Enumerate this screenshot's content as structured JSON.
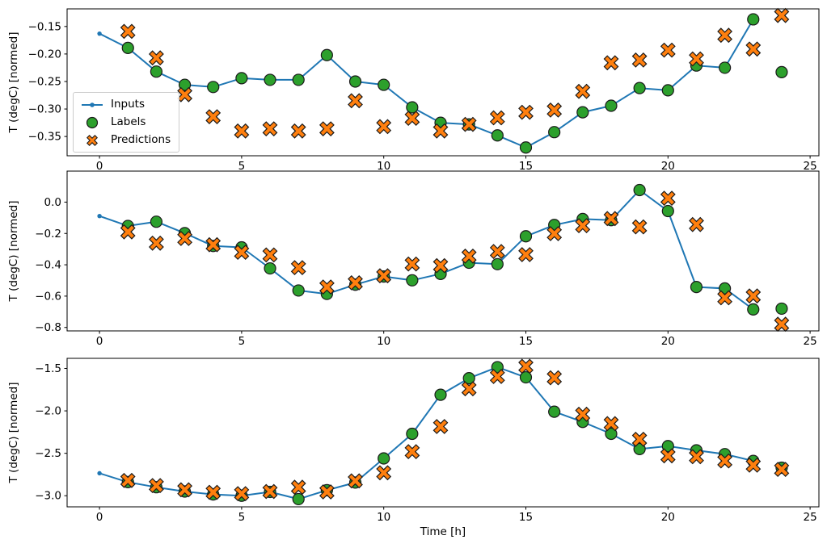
{
  "figure": {
    "background": "#ffffff"
  },
  "colors": {
    "inputs": "#1f77b4",
    "labels": "#2ca02c",
    "predictions": "#ff7f0e",
    "marker_edge": "#1a1a1a",
    "axis": "#000000"
  },
  "legend": {
    "entries": [
      "Inputs",
      "Labels",
      "Predictions"
    ],
    "position": "center-left of top subplot"
  },
  "chart_data": [
    {
      "type": "line",
      "title": "",
      "xlabel": "",
      "ylabel": "T (degC) [normed]",
      "xlim": [
        -1.14,
        25.31
      ],
      "ylim": [
        -0.385,
        -0.118
      ],
      "grid": false,
      "xticks": [
        0,
        5,
        10,
        15,
        20,
        25
      ],
      "xtick_labels": [
        "0",
        "5",
        "10",
        "15",
        "20",
        "25"
      ],
      "yticks": [
        -0.15,
        -0.2,
        -0.25,
        -0.3,
        -0.35
      ],
      "ytick_labels": [
        "−0.15",
        "−0.20",
        "−0.25",
        "−0.30",
        "−0.35"
      ],
      "series": [
        {
          "name": "Inputs",
          "style": "line+dot",
          "x": [
            0,
            1,
            2,
            3,
            4,
            5,
            6,
            7,
            8,
            9,
            10,
            11,
            12,
            13,
            14,
            15,
            16,
            17,
            18,
            19,
            20,
            21,
            22,
            23
          ],
          "y": [
            -0.163,
            -0.189,
            -0.232,
            -0.256,
            -0.26,
            -0.244,
            -0.247,
            -0.247,
            -0.202,
            -0.25,
            -0.256,
            -0.297,
            -0.325,
            -0.328,
            -0.348,
            -0.37,
            -0.342,
            -0.306,
            -0.294,
            -0.262,
            -0.266,
            -0.221,
            -0.225,
            -0.137
          ]
        },
        {
          "name": "Labels",
          "style": "circle",
          "x": [
            1,
            2,
            3,
            4,
            5,
            6,
            7,
            8,
            9,
            10,
            11,
            12,
            13,
            14,
            15,
            16,
            17,
            18,
            19,
            20,
            21,
            22,
            23,
            24
          ],
          "y": [
            -0.189,
            -0.232,
            -0.256,
            -0.26,
            -0.244,
            -0.247,
            -0.247,
            -0.202,
            -0.25,
            -0.256,
            -0.297,
            -0.325,
            -0.328,
            -0.348,
            -0.37,
            -0.342,
            -0.306,
            -0.294,
            -0.262,
            -0.266,
            -0.221,
            -0.225,
            -0.137,
            -0.233
          ]
        },
        {
          "name": "Predictions",
          "style": "x",
          "x": [
            1,
            2,
            3,
            4,
            5,
            6,
            7,
            8,
            9,
            10,
            11,
            12,
            13,
            14,
            15,
            16,
            17,
            18,
            19,
            20,
            21,
            22,
            23,
            24
          ],
          "y": [
            -0.159,
            -0.207,
            -0.274,
            -0.314,
            -0.34,
            -0.336,
            -0.34,
            -0.336,
            -0.285,
            -0.332,
            -0.317,
            -0.34,
            -0.328,
            -0.316,
            -0.306,
            -0.302,
            -0.268,
            -0.216,
            -0.211,
            -0.193,
            -0.209,
            -0.166,
            -0.191,
            -0.13
          ]
        }
      ]
    },
    {
      "type": "line",
      "title": "",
      "xlabel": "",
      "ylabel": "T (degC) [normed]",
      "xlim": [
        -1.14,
        25.31
      ],
      "ylim": [
        -0.822,
        0.198
      ],
      "grid": false,
      "xticks": [
        0,
        5,
        10,
        15,
        20,
        25
      ],
      "xtick_labels": [
        "0",
        "5",
        "10",
        "15",
        "20",
        "25"
      ],
      "yticks": [
        0.0,
        -0.2,
        -0.4,
        -0.6,
        -0.8
      ],
      "ytick_labels": [
        "0.0",
        "−0.2",
        "−0.4",
        "−0.6",
        "−0.8"
      ],
      "series": [
        {
          "name": "Inputs",
          "style": "line+dot",
          "x": [
            0,
            1,
            2,
            3,
            4,
            5,
            6,
            7,
            8,
            9,
            10,
            11,
            12,
            13,
            14,
            15,
            16,
            17,
            18,
            19,
            20,
            21,
            22,
            23
          ],
          "y": [
            -0.089,
            -0.152,
            -0.125,
            -0.198,
            -0.28,
            -0.289,
            -0.423,
            -0.564,
            -0.586,
            -0.527,
            -0.475,
            -0.499,
            -0.458,
            -0.387,
            -0.396,
            -0.218,
            -0.146,
            -0.108,
            -0.115,
            0.077,
            -0.057,
            -0.542,
            -0.551,
            -0.685
          ]
        },
        {
          "name": "Labels",
          "style": "circle",
          "x": [
            1,
            2,
            3,
            4,
            5,
            6,
            7,
            8,
            9,
            10,
            11,
            12,
            13,
            14,
            15,
            16,
            17,
            18,
            19,
            20,
            21,
            22,
            23,
            24
          ],
          "y": [
            -0.152,
            -0.125,
            -0.198,
            -0.28,
            -0.289,
            -0.423,
            -0.564,
            -0.586,
            -0.527,
            -0.475,
            -0.499,
            -0.458,
            -0.387,
            -0.396,
            -0.218,
            -0.146,
            -0.108,
            -0.115,
            0.077,
            -0.057,
            -0.542,
            -0.551,
            -0.685,
            -0.68
          ]
        },
        {
          "name": "Predictions",
          "style": "x",
          "x": [
            1,
            2,
            3,
            4,
            5,
            6,
            7,
            8,
            9,
            10,
            11,
            12,
            13,
            14,
            15,
            16,
            17,
            18,
            19,
            20,
            21,
            22,
            23,
            24
          ],
          "y": [
            -0.19,
            -0.262,
            -0.232,
            -0.272,
            -0.32,
            -0.337,
            -0.418,
            -0.542,
            -0.515,
            -0.47,
            -0.395,
            -0.405,
            -0.345,
            -0.315,
            -0.335,
            -0.201,
            -0.15,
            -0.105,
            -0.158,
            0.025,
            -0.143,
            -0.611,
            -0.599,
            -0.779
          ]
        }
      ]
    },
    {
      "type": "line",
      "title": "",
      "xlabel": "Time [h]",
      "ylabel": "T (degC) [normed]",
      "xlim": [
        -1.14,
        25.31
      ],
      "ylim": [
        -3.131,
        -1.381
      ],
      "grid": false,
      "xticks": [
        0,
        5,
        10,
        15,
        20,
        25
      ],
      "xtick_labels": [
        "0",
        "5",
        "10",
        "15",
        "20",
        "25"
      ],
      "yticks": [
        -1.5,
        -2.0,
        -2.5,
        -3.0
      ],
      "ytick_labels": [
        "−1.5",
        "−2.0",
        "−2.5",
        "−3.0"
      ],
      "series": [
        {
          "name": "Inputs",
          "style": "line+dot",
          "x": [
            0,
            1,
            2,
            3,
            4,
            5,
            6,
            7,
            8,
            9,
            10,
            11,
            12,
            13,
            14,
            15,
            16,
            17,
            18,
            19,
            20,
            21,
            22,
            23
          ],
          "y": [
            -2.735,
            -2.84,
            -2.9,
            -2.95,
            -2.985,
            -3.0,
            -2.955,
            -3.04,
            -2.935,
            -2.845,
            -2.56,
            -2.27,
            -1.81,
            -1.615,
            -1.485,
            -1.605,
            -2.01,
            -2.13,
            -2.27,
            -2.45,
            -2.415,
            -2.465,
            -2.51,
            -2.59
          ]
        },
        {
          "name": "Labels",
          "style": "circle",
          "x": [
            1,
            2,
            3,
            4,
            5,
            6,
            7,
            8,
            9,
            10,
            11,
            12,
            13,
            14,
            15,
            16,
            17,
            18,
            19,
            20,
            21,
            22,
            23,
            24
          ],
          "y": [
            -2.84,
            -2.9,
            -2.95,
            -2.985,
            -3.0,
            -2.955,
            -3.04,
            -2.935,
            -2.845,
            -2.56,
            -2.27,
            -1.81,
            -1.615,
            -1.485,
            -1.605,
            -2.01,
            -2.13,
            -2.27,
            -2.45,
            -2.415,
            -2.465,
            -2.51,
            -2.59,
            -2.67
          ]
        },
        {
          "name": "Predictions",
          "style": "x",
          "x": [
            1,
            2,
            3,
            4,
            5,
            6,
            7,
            8,
            9,
            10,
            11,
            12,
            13,
            14,
            15,
            16,
            17,
            18,
            19,
            20,
            21,
            22,
            23,
            24
          ],
          "y": [
            -2.82,
            -2.88,
            -2.93,
            -2.96,
            -2.975,
            -2.95,
            -2.9,
            -2.955,
            -2.825,
            -2.73,
            -2.48,
            -2.185,
            -1.74,
            -1.595,
            -1.475,
            -1.61,
            -2.04,
            -2.15,
            -2.335,
            -2.53,
            -2.54,
            -2.59,
            -2.64,
            -2.69
          ]
        }
      ]
    }
  ]
}
